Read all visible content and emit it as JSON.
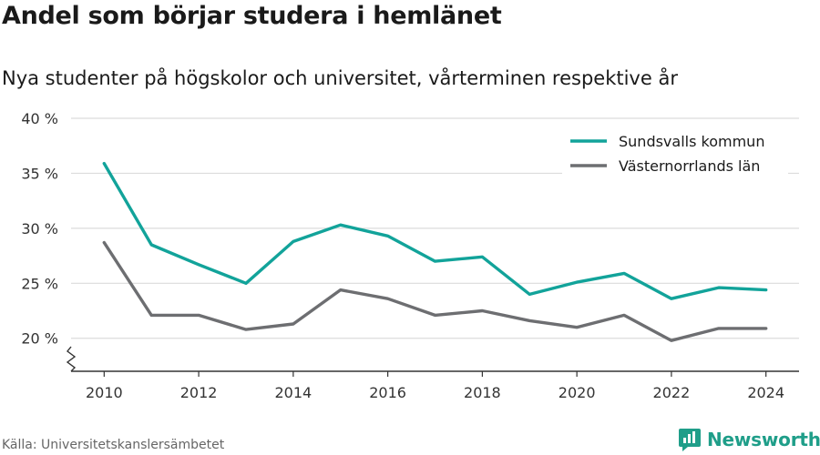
{
  "title": "Andel som börjar studera i hemlänet",
  "subtitle": "Nya studenter på högskolor och universitet, vårterminen respektive år",
  "source": "Källa: Universitetskanslersämbetet",
  "brand": {
    "name": "Newsworthy",
    "icon": "newsworthy-logo-icon",
    "color": "#1f9e89"
  },
  "chart_data": {
    "type": "line",
    "title": "Andel som börjar studera i hemlänet",
    "subtitle": "Nya studenter på högskolor och universitet, vårterminen respektive år",
    "x": [
      2010,
      2011,
      2012,
      2013,
      2014,
      2015,
      2016,
      2017,
      2018,
      2019,
      2020,
      2021,
      2022,
      2023,
      2024
    ],
    "xticks": [
      2010,
      2012,
      2014,
      2016,
      2018,
      2020,
      2022,
      2024
    ],
    "xlim": [
      2009.3,
      2024.7
    ],
    "yticks": [
      20,
      25,
      30,
      35,
      40
    ],
    "ytick_labels": [
      "20 %",
      "25 %",
      "30 %",
      "35 %",
      "40 %"
    ],
    "ylim": [
      17,
      40
    ],
    "y_axis_break": true,
    "grid": "horizontal",
    "legend": "top-right",
    "series": [
      {
        "name": "Sundsvalls kommun",
        "color": "#12a39a",
        "values": [
          35.9,
          28.5,
          26.7,
          25.0,
          28.8,
          30.3,
          29.3,
          27.0,
          27.4,
          24.0,
          25.1,
          25.9,
          23.6,
          24.6,
          24.4
        ]
      },
      {
        "name": "Västernorrlands län",
        "color": "#6d6e71",
        "values": [
          28.7,
          22.1,
          22.1,
          20.8,
          21.3,
          24.4,
          23.6,
          22.1,
          22.5,
          21.6,
          21.0,
          22.1,
          19.8,
          20.9,
          20.9
        ]
      }
    ]
  }
}
